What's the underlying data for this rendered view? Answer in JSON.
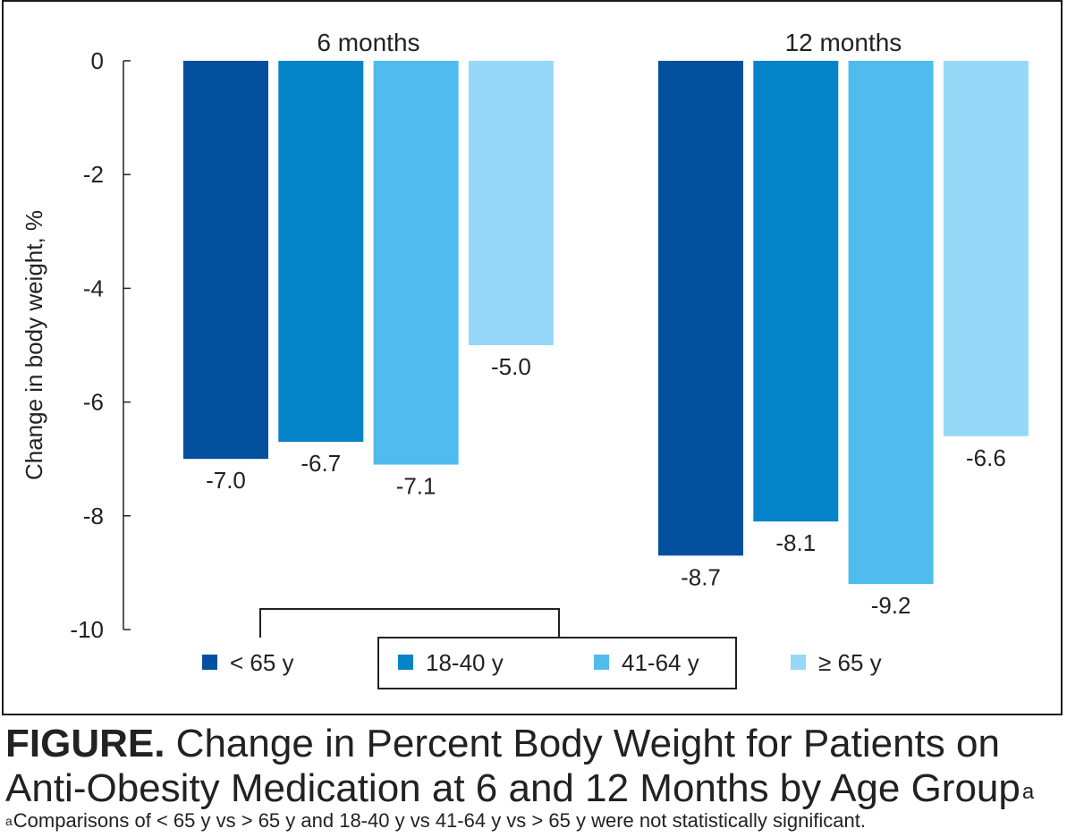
{
  "chart_data": {
    "type": "bar",
    "categories": [
      "6 months",
      "12 months"
    ],
    "series": [
      {
        "name": "< 65 y",
        "values": [
          -7.0,
          -8.7
        ],
        "color": "#03509f"
      },
      {
        "name": "18-40 y",
        "values": [
          -6.7,
          -8.1
        ],
        "color": "#0583c9"
      },
      {
        "name": "41-64 y",
        "values": [
          -7.1,
          -9.2
        ],
        "color": "#50bced"
      },
      {
        "name": "≥ 65 y",
        "values": [
          -5.0,
          -6.6
        ],
        "color": "#96d8f7"
      }
    ],
    "value_labels": [
      [
        "-7.0",
        "-8.7"
      ],
      [
        "-6.7",
        "-8.1"
      ],
      [
        "-7.1",
        "-9.2"
      ],
      [
        "-5.0",
        "-6.6"
      ]
    ],
    "ylabel": "Change in body weight, %",
    "ylim": [
      -10,
      0
    ],
    "yticks": [
      0,
      -2,
      -4,
      -6,
      -8,
      -10
    ],
    "ytick_labels": [
      "0",
      "-2",
      "-4",
      "-6",
      "-8",
      "-10"
    ],
    "legend": [
      "< 65 y",
      "18-40 y",
      "41-64 y",
      "≥ 65 y"
    ],
    "legend_position": "bottom"
  },
  "caption": {
    "figure_label": "FIGURE.",
    "title_line1": " Change in Percent Body Weight for Patients on",
    "title_line2": "Anti-Obesity Medication at 6 and 12 Months by Age Group",
    "title_marker": "a",
    "footnote_marker": "a",
    "footnote": "Comparisons of < 65 y vs > 65 y and 18-40 y vs 41-64 y vs > 65 y were not statistically significant."
  },
  "colors": {
    "frame": "#1a1a1a",
    "axis": "#222222",
    "text": "#222222",
    "background": "#ffffff"
  }
}
